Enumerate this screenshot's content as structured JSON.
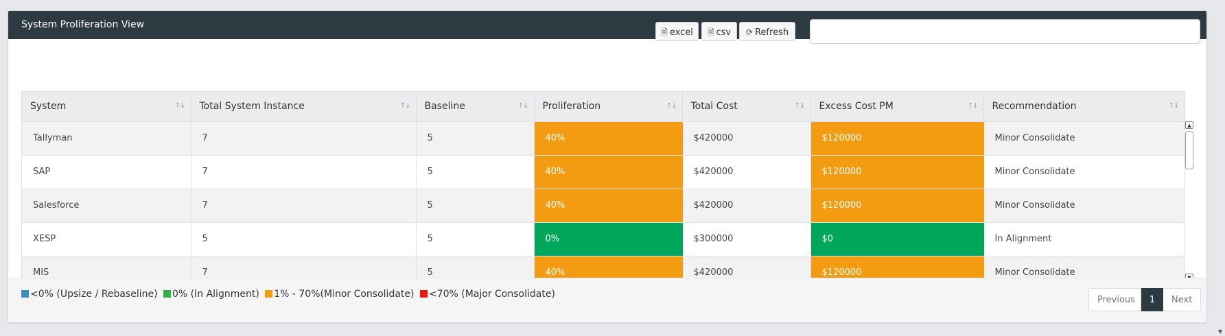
{
  "panel": {
    "title": "System Proliferation View"
  },
  "toolbar": {
    "excel_label": "excel",
    "csv_label": "csv",
    "refresh_label": "Refresh",
    "search_value": ""
  },
  "table": {
    "columns": [
      "System",
      "Total System Instance",
      "Baseline",
      "Proliferation",
      "Total Cost",
      "Excess Cost PM",
      "Recommendation"
    ],
    "rows": [
      [
        "Tallyman",
        "7",
        "5",
        "40%",
        "$420000",
        "$120000",
        "Minor Consolidate"
      ],
      [
        "SAP",
        "7",
        "5",
        "40%",
        "$420000",
        "$120000",
        "Minor Consolidate"
      ],
      [
        "Salesforce",
        "7",
        "5",
        "40%",
        "$420000",
        "$120000",
        "Minor Consolidate"
      ],
      [
        "XESP",
        "5",
        "5",
        "0%",
        "$300000",
        "$0",
        "In Alignment"
      ],
      [
        "MIS",
        "7",
        "5",
        "40%",
        "$420000",
        "$120000",
        "Minor Consolidate"
      ]
    ]
  },
  "legend": [
    {
      "label": "<0% (Upsize / Rebaseline)",
      "color": "#3c8dbc"
    },
    {
      "label": "0% (In Alignment)",
      "color": "#2fb344"
    },
    {
      "label": "1% - 70%(Minor Consolidate)",
      "color": "#f39c12"
    },
    {
      "label": "<70% (Major Consolidate)",
      "color": "#e8190f"
    }
  ],
  "pagination": {
    "previous": "Previous",
    "current": "1",
    "next": "Next"
  },
  "colors": {
    "orange": "#f39c12",
    "green": "#00a65a",
    "header": "#2d3a41"
  }
}
